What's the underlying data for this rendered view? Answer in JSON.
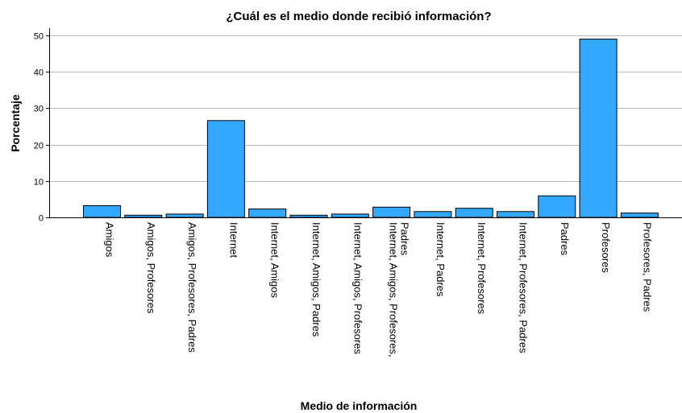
{
  "chart_data": {
    "type": "bar",
    "title": "¿Cuál es el medio donde recibió información?",
    "xlabel": "Medio de información",
    "ylabel": "Porcentaje",
    "ylim": [
      0,
      52
    ],
    "yticks": [
      "0",
      "10",
      "20",
      "30",
      "40",
      "50"
    ],
    "grid": true,
    "bar_color": "#33a8ff",
    "categories": [
      [
        "Amigos"
      ],
      [
        "Amigos, Profesores"
      ],
      [
        "Amigos, Profesores, Padres"
      ],
      [
        "Internet"
      ],
      [
        "Internet, Amigos"
      ],
      [
        "Internet, Amigos, Padres"
      ],
      [
        "Internet, Amigos, Profesores"
      ],
      [
        "Internet, Amigos, Profesores,",
        "Padres"
      ],
      [
        "Internet, Padres"
      ],
      [
        "Internet, Profesores"
      ],
      [
        "Internet, Profesores, Padres"
      ],
      [
        "Padres"
      ],
      [
        "Profesores"
      ],
      [
        "Profesores, Padres"
      ]
    ],
    "values": [
      3.2,
      0.6,
      0.9,
      26.6,
      2.3,
      0.6,
      0.9,
      2.8,
      1.6,
      2.5,
      1.6,
      5.9,
      49.0,
      1.2
    ]
  }
}
